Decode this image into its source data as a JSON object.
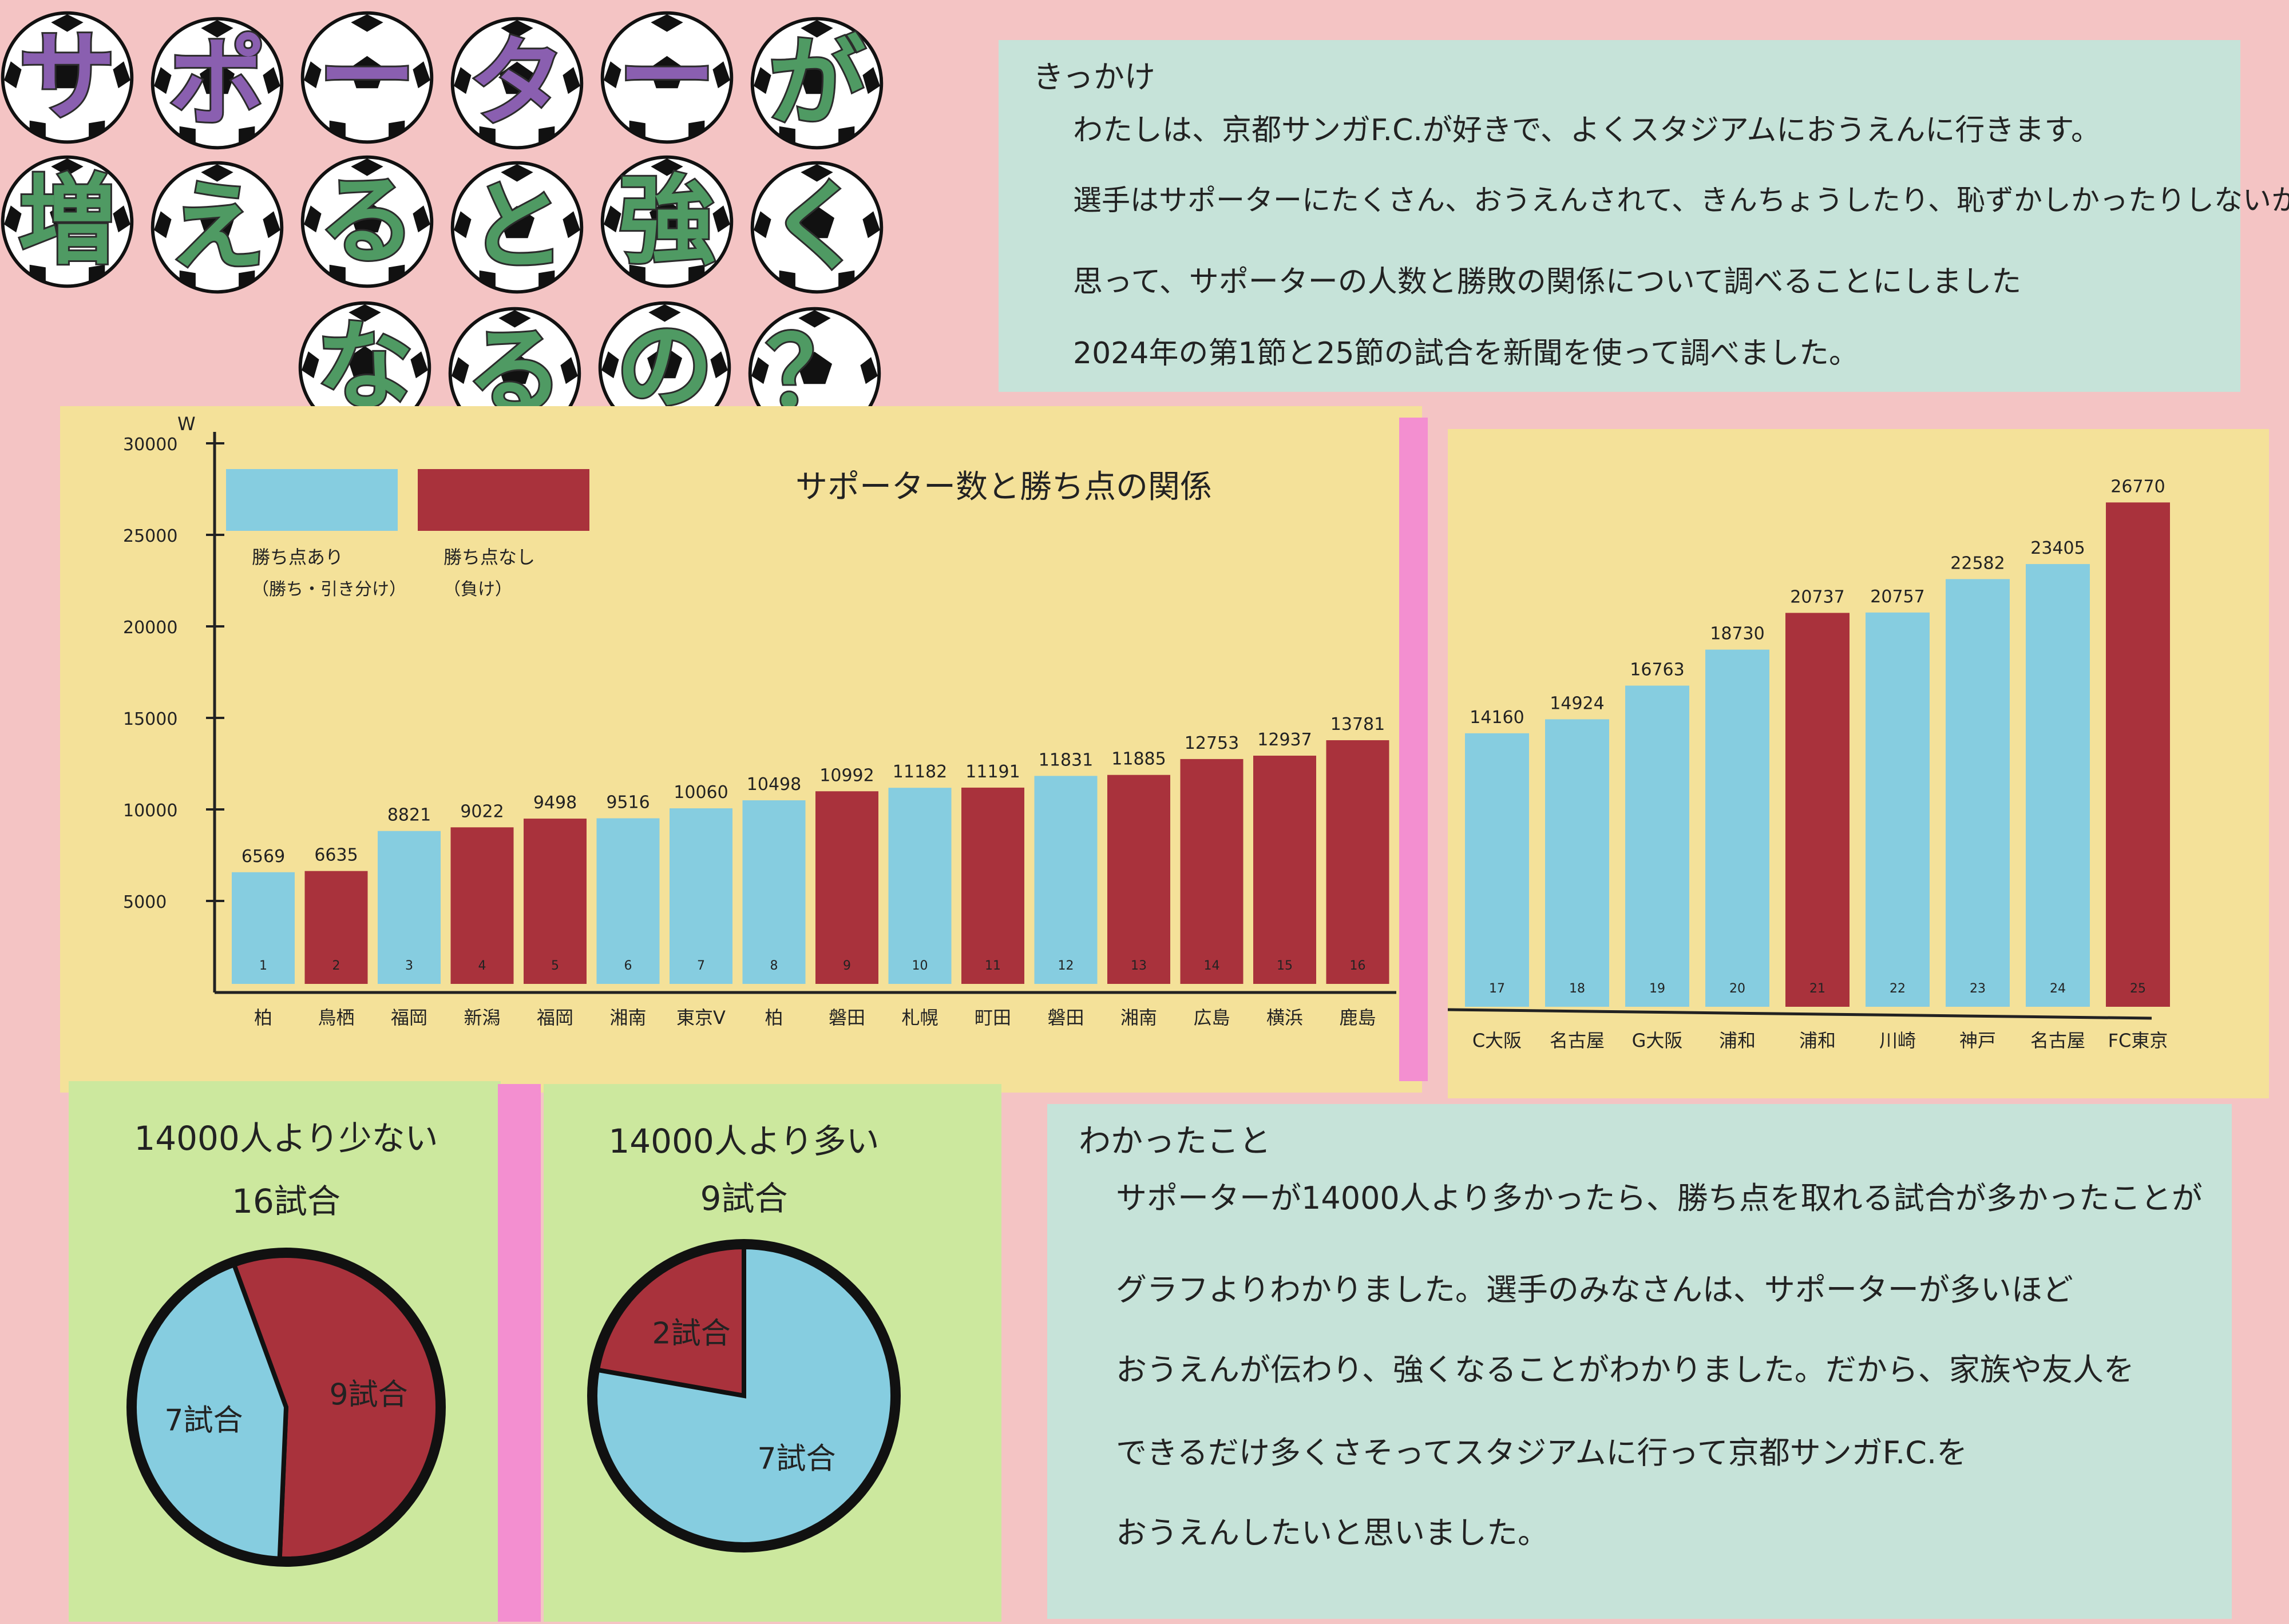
{
  "title": {
    "line1": [
      "サ",
      "ポ",
      "ー",
      "タ",
      "ー",
      "が"
    ],
    "line2": [
      "増",
      "え",
      "る",
      "と",
      "強",
      "く"
    ],
    "line3": [
      "な",
      "る",
      "の",
      "？"
    ]
  },
  "kikkake": {
    "heading": "きっかけ",
    "lines": [
      "わたしは、京都サンガF.C.が好きで、よくスタジアムにおうえんに行きます。",
      "選手はサポーターにたくさん、おうえんされて、きんちょうしたり、恥ずかしかったりしないかと",
      "思って、サポーターの人数と勝敗の関係について調べることにしました",
      "2024年の第1節と25節の試合を新聞を使って調べました。"
    ]
  },
  "colors": {
    "win": "#86cde0",
    "lose": "#a9323c"
  },
  "chart_data": {
    "type": "bar",
    "title": "サポーター数と勝ち点の関係",
    "ylabel": "W",
    "ylim": [
      0,
      30000
    ],
    "yticks": [
      "5000",
      "10000",
      "15000",
      "20000",
      "25000",
      "30000"
    ],
    "legend": [
      {
        "label_line1": "勝ち点あり",
        "label_line2": "（勝ち・引き分け）",
        "color": "win"
      },
      {
        "label_line1": "勝ち点なし",
        "label_line2": "（負け）",
        "color": "lose"
      }
    ],
    "bars": [
      {
        "n": "1",
        "team": "柏",
        "value": 6569,
        "label": "6569",
        "result": "win"
      },
      {
        "n": "2",
        "team": "鳥栖",
        "value": 6635,
        "label": "6635",
        "result": "lose"
      },
      {
        "n": "3",
        "team": "福岡",
        "value": 8821,
        "label": "8821",
        "result": "win"
      },
      {
        "n": "4",
        "team": "新潟",
        "value": 9022,
        "label": "9022",
        "result": "lose"
      },
      {
        "n": "5",
        "team": "福岡",
        "value": 9498,
        "label": "9498",
        "result": "lose"
      },
      {
        "n": "6",
        "team": "湘南",
        "value": 9516,
        "label": "9516",
        "result": "win"
      },
      {
        "n": "7",
        "team": "東京V",
        "value": 10060,
        "label": "10060",
        "result": "win"
      },
      {
        "n": "8",
        "team": "柏",
        "value": 10498,
        "label": "10498",
        "result": "win"
      },
      {
        "n": "9",
        "team": "磐田",
        "value": 10992,
        "label": "10992",
        "result": "lose"
      },
      {
        "n": "10",
        "team": "札幌",
        "value": 11182,
        "label": "11182",
        "result": "win"
      },
      {
        "n": "11",
        "team": "町田",
        "value": 11191,
        "label": "11191",
        "result": "lose"
      },
      {
        "n": "12",
        "team": "磐田",
        "value": 11831,
        "label": "11831",
        "result": "win"
      },
      {
        "n": "13",
        "team": "湘南",
        "value": 11885,
        "label": "11885",
        "result": "lose"
      },
      {
        "n": "14",
        "team": "広島",
        "value": 12753,
        "label": "12753",
        "result": "lose"
      },
      {
        "n": "15",
        "team": "横浜",
        "value": 12937,
        "label": "12937",
        "result": "lose"
      },
      {
        "n": "16",
        "team": "鹿島",
        "value": 13781,
        "label": "13781",
        "result": "lose"
      },
      {
        "n": "17",
        "team": "C大阪",
        "value": 14160,
        "label": "14160",
        "result": "win"
      },
      {
        "n": "18",
        "team": "名古屋",
        "value": 14924,
        "label": "14924",
        "result": "win"
      },
      {
        "n": "19",
        "team": "G大阪",
        "value": 16763,
        "label": "16763",
        "result": "win"
      },
      {
        "n": "20",
        "team": "浦和",
        "value": 18730,
        "label": "18730",
        "result": "win"
      },
      {
        "n": "21",
        "team": "浦和",
        "value": 20737,
        "label": "20737",
        "result": "lose"
      },
      {
        "n": "22",
        "team": "川崎",
        "value": 20757,
        "label": "20757",
        "result": "win"
      },
      {
        "n": "23",
        "team": "神戸",
        "value": 22582,
        "label": "22582",
        "result": "win"
      },
      {
        "n": "24",
        "team": "名古屋",
        "value": 23405,
        "label": "23405",
        "result": "win"
      },
      {
        "n": "25",
        "team": "FC東京",
        "value": 26770,
        "label": "26770",
        "result": "lose"
      }
    ],
    "pies": [
      {
        "title1": "14000人より少ない",
        "title2": "16試合",
        "slices": [
          {
            "label": "9試合",
            "value": 9,
            "color": "lose"
          },
          {
            "label": "7試合",
            "value": 7,
            "color": "win"
          }
        ]
      },
      {
        "title1": "14000人より多い",
        "title2": "9試合",
        "slices": [
          {
            "label": "2試合",
            "value": 2,
            "color": "lose"
          },
          {
            "label": "7試合",
            "value": 7,
            "color": "win"
          }
        ]
      }
    ]
  },
  "found": {
    "heading": "わかったこと",
    "lines": [
      "サポーターが14000人より多かったら、勝ち点を取れる試合が多かったことが",
      "グラフよりわかりました。選手のみなさんは、サポーターが多いほど",
      "おうえんが伝わり、強くなることがわかりました。だから、家族や友人を",
      "できるだけ多くさそってスタジアムに行って京都サンガF.C.を",
      "おうえんしたいと思いました。"
    ]
  }
}
